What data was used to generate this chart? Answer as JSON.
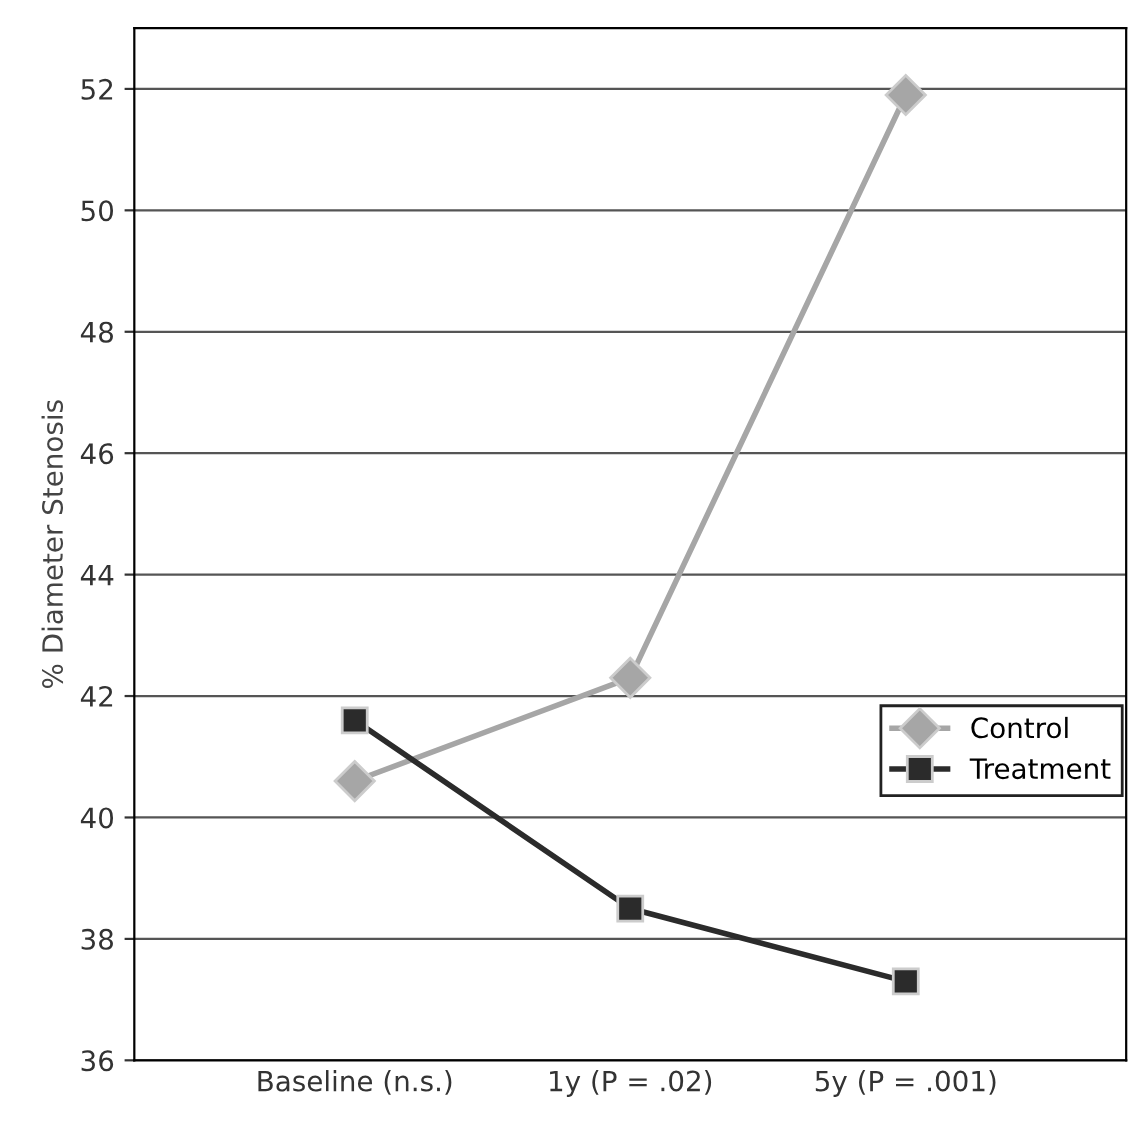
{
  "chart_data": {
    "type": "line",
    "ylabel": "% Diameter Stenosis",
    "categories": [
      "Baseline (n.s.)",
      "1y (P = .02)",
      "5y (P = .001)"
    ],
    "series": [
      {
        "name": "Control",
        "color": "#a6a6a6",
        "marker": "diamond",
        "values": [
          40.6,
          42.3,
          51.9
        ]
      },
      {
        "name": "Treatment",
        "color": "#2b2b2b",
        "marker": "square",
        "values": [
          41.6,
          38.5,
          37.3
        ]
      }
    ],
    "ylim": [
      36,
      53
    ],
    "yticks": [
      36,
      38,
      40,
      42,
      44,
      46,
      48,
      50,
      52
    ],
    "grid": "y",
    "legend": "right",
    "line_style": "solid"
  }
}
